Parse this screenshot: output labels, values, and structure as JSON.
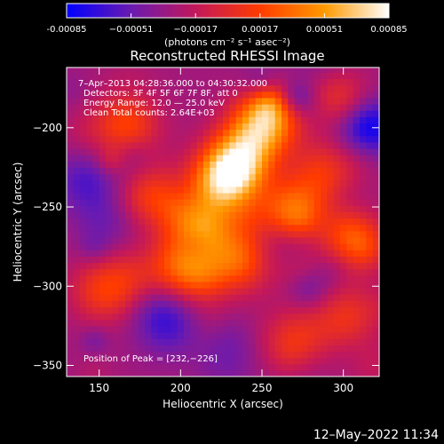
{
  "chart_data": {
    "type": "heatmap",
    "title": "Reconstructed RHESSI Image",
    "xlabel": "Heliocentric X (arcsec)",
    "ylabel": "Heliocentric Y (arcsec)",
    "xlim": [
      130,
      322
    ],
    "ylim": [
      -357,
      -162
    ],
    "xticks": [
      150,
      200,
      250,
      300
    ],
    "yticks": [
      -200,
      -250,
      -300,
      -350
    ],
    "colorbar": {
      "range": [
        -0.00085,
        0.00085
      ],
      "tick_values": [
        -0.00085,
        -0.00051,
        -0.00017,
        0.00017,
        0.00051,
        0.00085
      ],
      "tick_labels": [
        "-0.00085",
        "−0.00051",
        "−0.00017",
        "0.00017",
        "0.00051",
        "0.00085"
      ],
      "unit_label": "(photons cm⁻² s⁻¹ asec⁻²)",
      "colors": [
        "#0000ff",
        "#6a1bb0",
        "#c2185b",
        "#ff3b00",
        "#ff9a00",
        "#ffffff"
      ]
    },
    "annotations": {
      "time_range": "7–Apr–2013 04:28:36.000 to 04:30:32.000",
      "detectors": "Detectors: 3F 4F 5F 6F 7F 8F, att 0",
      "energy": "Energy Range: 12.0 — 25.0 keV",
      "clean": "Clean      Total counts: 2.64E+03",
      "peak": "Position of Peak = [232,−226]"
    },
    "peak": [
      232,
      -226
    ],
    "bright_regions": [
      {
        "x": 232,
        "y": -226,
        "amplitude": 1.0
      },
      {
        "x": 222,
        "y": -238,
        "amplitude": 0.85
      },
      {
        "x": 245,
        "y": -205,
        "amplitude": 0.75
      },
      {
        "x": 255,
        "y": -190,
        "amplitude": 0.7
      },
      {
        "x": 210,
        "y": -265,
        "amplitude": 0.8
      },
      {
        "x": 265,
        "y": -255,
        "amplitude": 0.7
      },
      {
        "x": 235,
        "y": -285,
        "amplitude": 0.7
      },
      {
        "x": 200,
        "y": -290,
        "amplitude": 0.65
      },
      {
        "x": 165,
        "y": -200,
        "amplitude": 0.55
      },
      {
        "x": 180,
        "y": -245,
        "amplitude": 0.5
      },
      {
        "x": 150,
        "y": -305,
        "amplitude": 0.45
      },
      {
        "x": 285,
        "y": -230,
        "amplitude": 0.45
      },
      {
        "x": 300,
        "y": -275,
        "amplitude": 0.5
      },
      {
        "x": 270,
        "y": -335,
        "amplitude": 0.4
      },
      {
        "x": 300,
        "y": -320,
        "amplitude": 0.45
      }
    ],
    "dim_regions": [
      {
        "x": 315,
        "y": -200,
        "amplitude": -0.6
      },
      {
        "x": 190,
        "y": -325,
        "amplitude": -0.4
      },
      {
        "x": 140,
        "y": -235,
        "amplitude": -0.35
      }
    ]
  },
  "footer": {
    "timestamp": "12–May–2022 11:34"
  }
}
